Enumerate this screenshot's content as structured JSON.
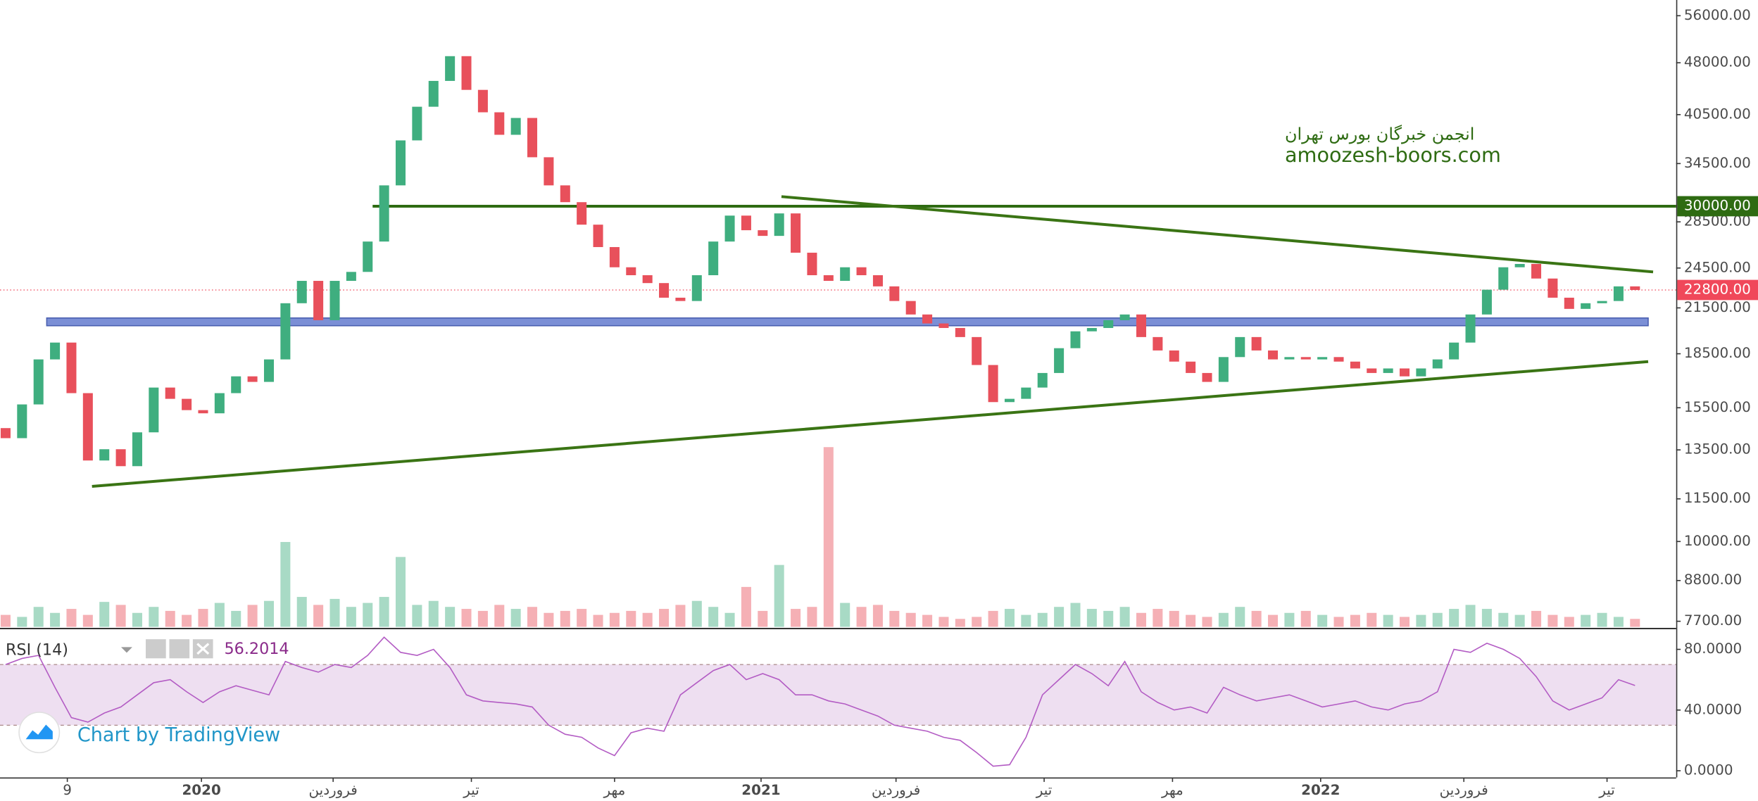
{
  "chart_data": {
    "type": "candlestick",
    "up_color": "#3fae7f",
    "down_color": "#e8505b",
    "xlim": [
      -0.34,
      101.5
    ],
    "xticks": [
      {
        "value": 3.75,
        "label": "9"
      },
      {
        "value": 11.9,
        "label": "2020"
      },
      {
        "value": 19.9,
        "label": "فروردین"
      },
      {
        "value": 28.3,
        "label": "تیر"
      },
      {
        "value": 37.0,
        "label": "مهر"
      },
      {
        "value": 45.9,
        "label": "2021"
      },
      {
        "value": 54.1,
        "label": "فروردین"
      },
      {
        "value": 63.1,
        "label": "تیر"
      },
      {
        "value": 70.9,
        "label": "مهر"
      },
      {
        "value": 79.9,
        "label": "2022"
      },
      {
        "value": 88.6,
        "label": "فروردین"
      },
      {
        "value": 97.3,
        "label": "تیر"
      }
    ],
    "log_scale": true,
    "ylim": [
      7560,
      58960
    ],
    "yticks": [
      {
        "value": 56000,
        "label": "56000.00"
      },
      {
        "value": 48000,
        "label": "48000.00"
      },
      {
        "value": 40500,
        "label": "40500.00"
      },
      {
        "value": 34500,
        "label": "34500.00"
      },
      {
        "value": 28500,
        "label": "28500.00"
      },
      {
        "value": 24500,
        "label": "24500.00"
      },
      {
        "value": 21500,
        "label": "21500.00"
      },
      {
        "value": 18500,
        "label": "18500.00"
      },
      {
        "value": 15500,
        "label": "15500.00"
      },
      {
        "value": 13500,
        "label": "13500.00"
      },
      {
        "value": 11500,
        "label": "11500.00"
      },
      {
        "value": 10000,
        "label": "10000.00"
      },
      {
        "value": 8800,
        "label": "8800.00"
      },
      {
        "value": 7700,
        "label": "7700.00"
      }
    ],
    "open": [
      14500,
      14030,
      15670,
      18160,
      19190,
      16260,
      13040,
      13530,
      12800,
      14300,
      16560,
      15960,
      15380,
      15220,
      16260,
      17180,
      16870,
      18160,
      21830,
      23490,
      20650,
      23490,
      24190,
      26720,
      32120,
      37220,
      41560,
      45230,
      49050,
      43920,
      40810,
      37910,
      40060,
      35220,
      32120,
      30400,
      28240,
      26240,
      24560,
      23930,
      23320,
      22230,
      21990,
      23930,
      26720,
      29090,
      27730,
      27220,
      29300,
      25760,
      23930,
      23490,
      24560,
      23930,
      23070,
      21990,
      21040,
      20430,
      20130,
      19540,
      17830,
      15790,
      15960,
      16560,
      17370,
      18840,
      19910,
      20130,
      20650,
      21040,
      19540,
      18700,
      18030,
      17370,
      16870,
      18300,
      19540,
      18700,
      18160,
      18300,
      18160,
      18300,
      18030,
      17630,
      17370,
      17630,
      17180,
      17630,
      18160,
      19190,
      21040,
      22820,
      24560,
      24830,
      23670,
      22230,
      21430,
      21830,
      21990,
      23070
    ],
    "close": [
      14030,
      15670,
      18160,
      19190,
      16260,
      13040,
      13530,
      12800,
      14300,
      16560,
      15960,
      15380,
      15220,
      16260,
      17180,
      16870,
      18160,
      21830,
      23490,
      20650,
      23490,
      24190,
      26720,
      32120,
      37220,
      41560,
      45230,
      49050,
      43920,
      40810,
      37910,
      40060,
      35220,
      32120,
      30400,
      28240,
      26240,
      24560,
      23930,
      23320,
      22230,
      21990,
      23930,
      26720,
      29090,
      27730,
      27220,
      29300,
      25760,
      23930,
      23490,
      24560,
      23930,
      23070,
      21990,
      21040,
      20430,
      20130,
      19540,
      17830,
      15790,
      15960,
      16560,
      17370,
      18840,
      19910,
      20130,
      20650,
      21040,
      19540,
      18700,
      18030,
      17370,
      16870,
      18300,
      19540,
      18700,
      18160,
      18300,
      18160,
      18300,
      18030,
      17630,
      17370,
      17630,
      17180,
      17630,
      18160,
      19190,
      21040,
      22820,
      24560,
      24830,
      23670,
      22230,
      21430,
      21830,
      21990,
      23070,
      22800
    ],
    "volume": [
      12,
      10,
      20,
      14,
      18,
      12,
      25,
      22,
      14,
      20,
      16,
      12,
      18,
      24,
      16,
      22,
      26,
      85,
      30,
      22,
      28,
      20,
      24,
      30,
      70,
      22,
      26,
      20,
      18,
      16,
      22,
      18,
      20,
      14,
      16,
      18,
      12,
      14,
      16,
      14,
      18,
      22,
      26,
      20,
      14,
      40,
      16,
      62,
      18,
      20,
      180,
      24,
      20,
      22,
      16,
      14,
      12,
      10,
      8,
      10,
      16,
      18,
      12,
      14,
      20,
      24,
      18,
      16,
      20,
      14,
      18,
      16,
      12,
      10,
      14,
      20,
      16,
      12,
      14,
      16,
      12,
      10,
      12,
      14,
      12,
      10,
      12,
      14,
      18,
      22,
      18,
      14,
      12,
      16,
      12,
      10,
      12,
      14,
      10,
      8
    ],
    "levels": [
      {
        "value": 30000,
        "label": "30000.00",
        "color": "#2e6b12",
        "x_start": 22.3
      }
    ],
    "current_price": {
      "value": 22800,
      "label": "22800.00",
      "color": "#f0485a"
    },
    "band": {
      "low": 20280,
      "high": 20800,
      "x": [
        2.5,
        99.8
      ],
      "color": "#7b8fd6"
    },
    "trendlines": [
      {
        "x": [
          47.14,
          100.1
        ],
        "y": [
          30960,
          24190
        ],
        "color": "#3a7414"
      },
      {
        "x": [
          5.25,
          99.8
        ],
        "y": [
          11980,
          18030
        ],
        "color": "#3a7414"
      }
    ],
    "watermark": {
      "title": "انجمن خبرگان بورس تهران",
      "site": "amoozesh-boors.com"
    },
    "rsi": {
      "label": "RSI (14)",
      "last": 56.2014,
      "color": "#b35cc4",
      "ylim": [
        -4.4,
        92.6
      ],
      "yticks": [
        {
          "value": 80,
          "label": "80.0000"
        },
        {
          "value": 40,
          "label": "40.0000"
        },
        {
          "value": 0,
          "label": "0.0000"
        }
      ],
      "band": [
        30,
        70
      ],
      "values": [
        70,
        74,
        76,
        55,
        35,
        32,
        38,
        42,
        50,
        58,
        60,
        52,
        45,
        52,
        56,
        53,
        50,
        72,
        68,
        65,
        70,
        68,
        76,
        88,
        78,
        76,
        80,
        68,
        50,
        46,
        45,
        44,
        42,
        30,
        24,
        22,
        15,
        10,
        25,
        28,
        26,
        50,
        58,
        66,
        70,
        60,
        64,
        60,
        50,
        50,
        46,
        44,
        40,
        36,
        30,
        28,
        26,
        22,
        20,
        12,
        3,
        4,
        22,
        50,
        60,
        70,
        64,
        56,
        72,
        52,
        45,
        40,
        42,
        38,
        55,
        50,
        46,
        48,
        50,
        46,
        42,
        44,
        46,
        42,
        40,
        44,
        46,
        52,
        80,
        78,
        84,
        80,
        74,
        62,
        46,
        40,
        44,
        48,
        60,
        56.2014
      ]
    },
    "credit": "Chart by TradingView"
  }
}
